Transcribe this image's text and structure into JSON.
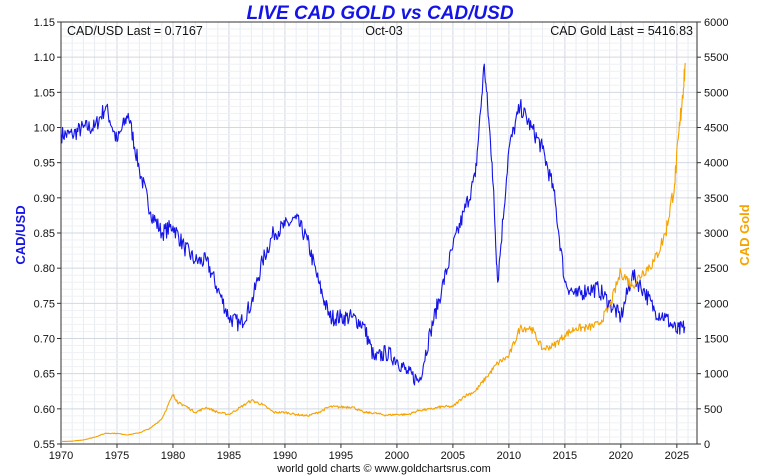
{
  "chart_data": {
    "type": "line",
    "title": "LIVE CAD GOLD vs CAD/USD",
    "info": {
      "left": "CAD/USD Last = 0.7167",
      "center": "Oct-03",
      "right": "CAD Gold Last = 5416.83"
    },
    "credit": "world gold charts © www.goldchartsrus.com",
    "xlabel": "",
    "xlim": [
      1970,
      2026.8
    ],
    "x_ticks": [
      1970,
      1975,
      1980,
      1985,
      1990,
      1995,
      2000,
      2005,
      2010,
      2015,
      2020,
      2025
    ],
    "y_left": {
      "label": "CAD/USD",
      "ylim": [
        0.55,
        1.15
      ],
      "ticks": [
        "0.55",
        "0.60",
        "0.65",
        "0.70",
        "0.75",
        "0.80",
        "0.85",
        "0.90",
        "0.95",
        "1.00",
        "1.05",
        "1.10",
        "1.15"
      ]
    },
    "y_right": {
      "label": "CAD Gold",
      "ylim": [
        0,
        6000
      ],
      "ticks": [
        "0",
        "500",
        "1000",
        "1500",
        "2000",
        "2500",
        "3000",
        "3500",
        "4000",
        "4500",
        "5000",
        "5500",
        "6000"
      ]
    },
    "grid": true,
    "series": [
      {
        "name": "CAD/USD",
        "axis": "left",
        "color": "#1414e6",
        "points": [
          [
            1970,
            0.99
          ],
          [
            1971,
            0.99
          ],
          [
            1972,
            1.0
          ],
          [
            1973,
            1.0
          ],
          [
            1974,
            1.03
          ],
          [
            1975,
            0.98
          ],
          [
            1976,
            1.02
          ],
          [
            1977,
            0.94
          ],
          [
            1978,
            0.88
          ],
          [
            1979,
            0.85
          ],
          [
            1980,
            0.86
          ],
          [
            1981,
            0.83
          ],
          [
            1982,
            0.81
          ],
          [
            1983,
            0.81
          ],
          [
            1984,
            0.77
          ],
          [
            1985,
            0.73
          ],
          [
            1986,
            0.72
          ],
          [
            1987,
            0.75
          ],
          [
            1988,
            0.81
          ],
          [
            1989,
            0.85
          ],
          [
            1990,
            0.86
          ],
          [
            1991,
            0.87
          ],
          [
            1992,
            0.84
          ],
          [
            1993,
            0.78
          ],
          [
            1994,
            0.73
          ],
          [
            1995,
            0.73
          ],
          [
            1996,
            0.73
          ],
          [
            1997,
            0.72
          ],
          [
            1998,
            0.67
          ],
          [
            1999,
            0.68
          ],
          [
            2000,
            0.67
          ],
          [
            2001,
            0.65
          ],
          [
            2002,
            0.64
          ],
          [
            2003,
            0.71
          ],
          [
            2004,
            0.77
          ],
          [
            2005,
            0.83
          ],
          [
            2006,
            0.88
          ],
          [
            2007,
            0.93
          ],
          [
            2007.8,
            1.09
          ],
          [
            2008.5,
            0.95
          ],
          [
            2009,
            0.78
          ],
          [
            2010,
            0.97
          ],
          [
            2011,
            1.03
          ],
          [
            2012,
            1.0
          ],
          [
            2013,
            0.97
          ],
          [
            2014,
            0.91
          ],
          [
            2015,
            0.78
          ],
          [
            2016,
            0.76
          ],
          [
            2017,
            0.77
          ],
          [
            2018,
            0.77
          ],
          [
            2019,
            0.75
          ],
          [
            2020,
            0.73
          ],
          [
            2021,
            0.79
          ],
          [
            2022,
            0.77
          ],
          [
            2023,
            0.74
          ],
          [
            2024,
            0.73
          ],
          [
            2025,
            0.71
          ],
          [
            2025.75,
            0.7167
          ]
        ]
      },
      {
        "name": "CAD Gold",
        "axis": "right",
        "color": "#f5a300",
        "points": [
          [
            1970,
            36
          ],
          [
            1971,
            40
          ],
          [
            1972,
            58
          ],
          [
            1973,
            97
          ],
          [
            1974,
            154
          ],
          [
            1975,
            150
          ],
          [
            1976,
            130
          ],
          [
            1977,
            160
          ],
          [
            1978,
            225
          ],
          [
            1979,
            360
          ],
          [
            1980,
            700
          ],
          [
            1980.5,
            580
          ],
          [
            1981,
            550
          ],
          [
            1982,
            450
          ],
          [
            1983,
            520
          ],
          [
            1984,
            450
          ],
          [
            1985,
            420
          ],
          [
            1986,
            520
          ],
          [
            1987,
            620
          ],
          [
            1988,
            560
          ],
          [
            1989,
            450
          ],
          [
            1990,
            450
          ],
          [
            1991,
            420
          ],
          [
            1992,
            400
          ],
          [
            1993,
            450
          ],
          [
            1994,
            530
          ],
          [
            1995,
            525
          ],
          [
            1996,
            530
          ],
          [
            1997,
            450
          ],
          [
            1998,
            440
          ],
          [
            1999,
            410
          ],
          [
            2000,
            420
          ],
          [
            2001,
            420
          ],
          [
            2002,
            480
          ],
          [
            2003,
            495
          ],
          [
            2004,
            530
          ],
          [
            2005,
            530
          ],
          [
            2006,
            680
          ],
          [
            2007,
            750
          ],
          [
            2008,
            950
          ],
          [
            2009,
            1150
          ],
          [
            2010,
            1250
          ],
          [
            2011,
            1650
          ],
          [
            2012,
            1650
          ],
          [
            2013,
            1350
          ],
          [
            2014,
            1400
          ],
          [
            2015,
            1550
          ],
          [
            2016,
            1650
          ],
          [
            2017,
            1650
          ],
          [
            2018,
            1700
          ],
          [
            2019,
            1950
          ],
          [
            2020,
            2450
          ],
          [
            2021,
            2250
          ],
          [
            2022,
            2450
          ],
          [
            2023,
            2600
          ],
          [
            2024,
            3000
          ],
          [
            2024.8,
            3700
          ],
          [
            2025.3,
            4600
          ],
          [
            2025.75,
            5416.83
          ]
        ]
      }
    ]
  }
}
